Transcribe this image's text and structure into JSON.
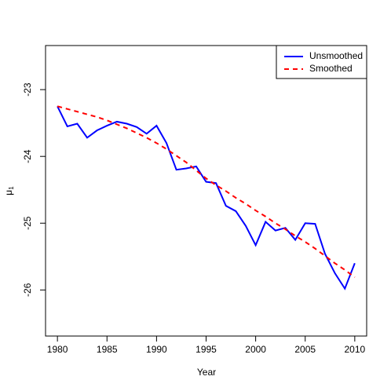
{
  "chart_data": {
    "type": "line",
    "xlabel": "Year",
    "ylabel": "μ",
    "ylabel_sub": "1",
    "x": [
      1980,
      1981,
      1982,
      1983,
      1984,
      1985,
      1986,
      1987,
      1988,
      1989,
      1990,
      1991,
      1992,
      1993,
      1994,
      1995,
      1996,
      1997,
      1998,
      1999,
      2000,
      2001,
      2002,
      2003,
      2004,
      2005,
      2006,
      2007,
      2008,
      2009,
      2010
    ],
    "series": [
      {
        "name": "Unsmoothed",
        "color": "#0000ff",
        "dash": false,
        "values": [
          -23.25,
          -23.55,
          -23.51,
          -23.72,
          -23.61,
          -23.54,
          -23.48,
          -23.51,
          -23.56,
          -23.66,
          -23.54,
          -23.8,
          -24.2,
          -24.18,
          -24.15,
          -24.38,
          -24.4,
          -24.74,
          -24.82,
          -25.04,
          -25.33,
          -24.98,
          -25.11,
          -25.07,
          -25.25,
          -25.0,
          -25.01,
          -25.46,
          -25.75,
          -25.98,
          -25.6
        ]
      },
      {
        "name": "Smoothed",
        "color": "#ff0000",
        "dash": true,
        "values": [
          -23.25,
          -23.29,
          -23.33,
          -23.37,
          -23.41,
          -23.46,
          -23.52,
          -23.58,
          -23.65,
          -23.72,
          -23.8,
          -23.89,
          -23.99,
          -24.09,
          -24.21,
          -24.33,
          -24.43,
          -24.52,
          -24.62,
          -24.71,
          -24.81,
          -24.9,
          -25.0,
          -25.09,
          -25.19,
          -25.28,
          -25.38,
          -25.49,
          -25.6,
          -25.7,
          -25.81
        ]
      }
    ],
    "xlim": [
      1978.8,
      2011.2
    ],
    "xticks": [
      1980,
      1985,
      1990,
      1995,
      2000,
      2005,
      2010
    ],
    "ylim": [
      -26.69,
      -22.34
    ],
    "yticks": [
      -26,
      -25,
      -24,
      -23
    ],
    "legend": "top-right"
  }
}
